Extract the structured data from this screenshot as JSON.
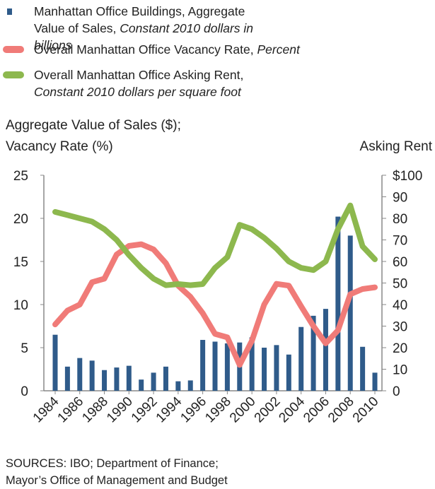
{
  "chart_data": {
    "type": "bar-line",
    "y_axis_label": [
      "Aggregate Value of Sales ($);",
      "Vacancy Rate (%)"
    ],
    "y2_axis_label": "Asking Rent",
    "source": [
      "SOURCES: IBO; Department of Finance;",
      "Mayor’s Office of Management and Budget"
    ],
    "categories": [
      "1984",
      null,
      "1986",
      null,
      "1988",
      null,
      "1990",
      null,
      "1992",
      null,
      "1994",
      null,
      "1996",
      null,
      "1998",
      null,
      "2000",
      null,
      "2002",
      null,
      "2004",
      null,
      "2006",
      null,
      "2008",
      null,
      "2010"
    ],
    "series": [
      {
        "name": "Manhattan Office Buildings, Aggregate Value of Sales,",
        "unit": "Constant 2010 dollars in billions",
        "type": "bar",
        "color": "#2f5b8a",
        "values": [
          6.5,
          2.8,
          3.8,
          3.5,
          2.4,
          2.7,
          2.9,
          1.3,
          2.1,
          2.8,
          1.1,
          1.2,
          5.9,
          5.7,
          5.5,
          5.6,
          6.2,
          5.0,
          5.3,
          4.2,
          7.4,
          8.7,
          9.5,
          20.2,
          18.0,
          5.1,
          2.1
        ]
      },
      {
        "name": "Overall Manhattan Office Vacancy Rate,",
        "unit": "Percent",
        "type": "line",
        "color": "#f07b78",
        "values": [
          7.7,
          9.3,
          10.0,
          12.6,
          13.0,
          15.8,
          16.8,
          17.0,
          16.4,
          14.8,
          12.2,
          10.9,
          9.0,
          6.6,
          6.2,
          3.0,
          5.8,
          10.0,
          12.4,
          12.2,
          9.8,
          7.5,
          5.5,
          7.0,
          11.2,
          11.8,
          12.0
        ]
      },
      {
        "name": "Overall Manhattan Office Asking Rent,",
        "unit": "Constant 2010 dollars per square foot",
        "type": "line",
        "axis": "y2",
        "color": "#8db84e",
        "values": [
          83,
          81.5,
          80,
          78.5,
          75,
          70,
          63,
          57,
          52,
          49,
          49.5,
          49,
          49.5,
          57,
          62,
          77,
          75,
          71,
          66,
          60,
          57,
          56,
          60,
          75,
          86,
          67,
          61
        ]
      }
    ],
    "ylim": [
      0,
      25
    ],
    "yticks": [
      0,
      5,
      10,
      15,
      20,
      25
    ],
    "y2lim": [
      0,
      100
    ],
    "y2ticks": [
      0,
      10,
      20,
      30,
      40,
      50,
      60,
      70,
      80,
      90,
      {
        "value": 100,
        "label": "$100"
      }
    ]
  }
}
